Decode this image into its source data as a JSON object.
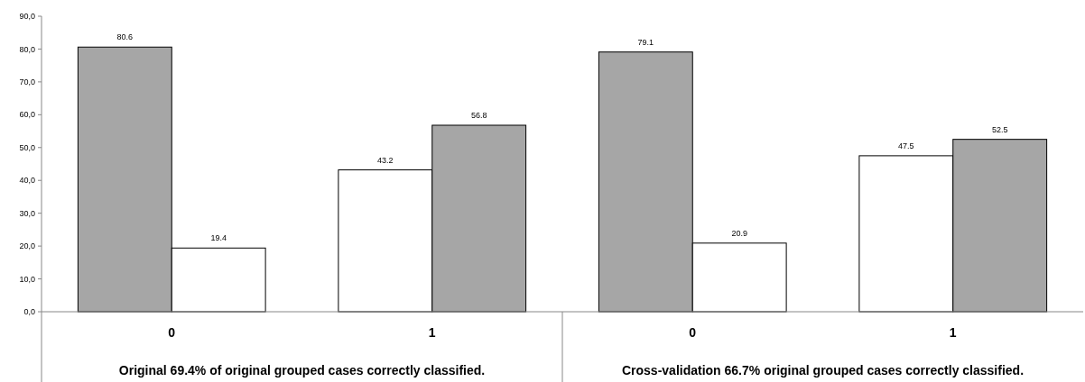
{
  "chart_data": {
    "type": "bar",
    "categories": [
      "0",
      "1",
      "0",
      "1"
    ],
    "series": [
      {
        "colors": [
          "#a6a6a6",
          "#ffffff",
          "#a6a6a6",
          "#ffffff"
        ],
        "values": [
          80.6,
          43.2,
          79.1,
          47.5
        ]
      },
      {
        "colors": [
          "#ffffff",
          "#a6a6a6",
          "#ffffff",
          "#a6a6a6"
        ],
        "values": [
          19.4,
          56.8,
          20.9,
          52.5
        ]
      }
    ],
    "ylim": [
      0,
      90
    ],
    "yticks": [
      {
        "value": 0,
        "label": "0,0"
      },
      {
        "value": 10,
        "label": "10,0"
      },
      {
        "value": 20,
        "label": "20,0"
      },
      {
        "value": 30,
        "label": "30,0"
      },
      {
        "value": 40,
        "label": "40,0"
      },
      {
        "value": 50,
        "label": "50,0"
      },
      {
        "value": 60,
        "label": "60,0"
      },
      {
        "value": 70,
        "label": "70,0"
      },
      {
        "value": 80,
        "label": "80,0"
      },
      {
        "value": 90,
        "label": "90,0"
      }
    ],
    "data_labels": true,
    "grid": false,
    "annotations": [
      "Original 69.4% of original grouped cases correctly classified.",
      "Cross-validation 66.7% original grouped cases correctly classified."
    ]
  }
}
